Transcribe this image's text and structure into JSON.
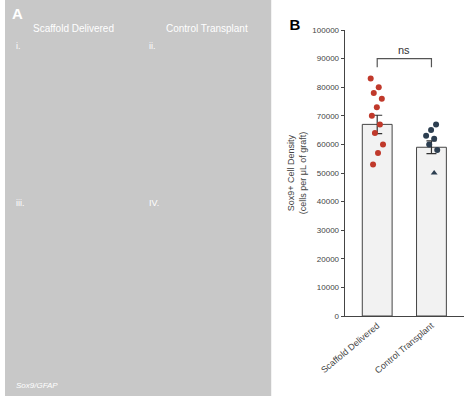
{
  "chart_data": {
    "type": "bar",
    "title": "B",
    "ylabel": "Sox9+ Cell Density\n(cells per μL of graft)",
    "categories": [
      "Scaffold Delivered",
      "Control Transplant"
    ],
    "values": [
      67000,
      59000
    ],
    "errors": [
      3200,
      2200
    ],
    "color": "#f2f2f2",
    "ylim": [
      0,
      100000
    ],
    "yticks": [
      0,
      10000,
      20000,
      30000,
      40000,
      50000,
      60000,
      70000,
      80000,
      90000,
      100000
    ],
    "grid": false,
    "points": [
      {
        "category": "Scaffold Delivered",
        "color": "#c0392b",
        "marker": "circle",
        "values": [
          83000,
          80000,
          78000,
          76000,
          73000,
          70000,
          67000,
          64000,
          60000,
          57000,
          53000
        ]
      },
      {
        "category": "Control Transplant",
        "color": "#2c3e50",
        "marker": "circle",
        "values": [
          67000,
          65000,
          63000,
          62000,
          60000,
          58000
        ]
      },
      {
        "category": "Control Transplant",
        "color": "#2c3e50",
        "marker": "triangle",
        "values": [
          50000
        ]
      }
    ],
    "annotations": [
      {
        "text": "ns",
        "y": 90000
      },
      {
        "text": "A"
      },
      {
        "text": "Scaffold Delivered"
      },
      {
        "text": "Control Transplant"
      },
      {
        "text": "i."
      },
      {
        "text": "ii."
      },
      {
        "text": "iii."
      },
      {
        "text": "IV."
      },
      {
        "text": "Sox9/GFAP"
      }
    ]
  }
}
